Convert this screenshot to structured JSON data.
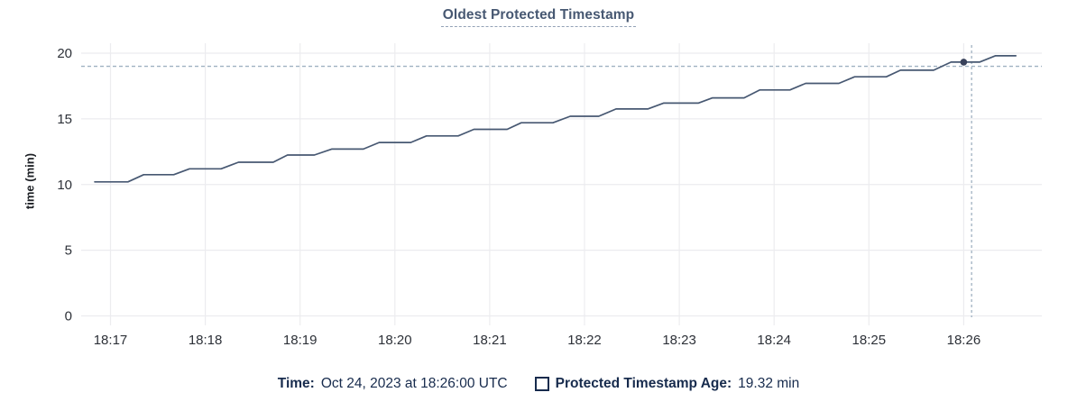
{
  "tooltip": {
    "time_label": "Time:",
    "time_value": "Oct 24, 2023 at 18:26:00 UTC",
    "series_label": "Protected Timestamp Age:",
    "series_value": "19.32 min"
  },
  "colors": {
    "title": "#475872",
    "line": "#475872",
    "dot": "#38415a",
    "crosshair": "#9fb1c1",
    "gridline": "#ececef",
    "tick_text": "#2d3138",
    "legend_text": "#172b4d"
  },
  "chart_data": {
    "type": "line",
    "title": "Oldest Protected Timestamp",
    "xlabel": "",
    "ylabel": "time (min)",
    "ylim": [
      0,
      20
    ],
    "y_ticks": [
      0,
      5,
      10,
      15,
      20
    ],
    "x_ticks": [
      "18:17",
      "18:18",
      "18:19",
      "18:20",
      "18:21",
      "18:22",
      "18:23",
      "18:24",
      "18:25",
      "18:26"
    ],
    "grid": true,
    "legend_position": "bottom",
    "series": [
      {
        "name": "Protected Timestamp Age",
        "unit": "min",
        "points": [
          [
            "18:16:50",
            10.2
          ],
          [
            "18:17:11",
            10.2
          ],
          [
            "18:17:21",
            10.75
          ],
          [
            "18:17:40",
            10.75
          ],
          [
            "18:17:50",
            11.2
          ],
          [
            "18:18:10",
            11.2
          ],
          [
            "18:18:21",
            11.7
          ],
          [
            "18:18:43",
            11.7
          ],
          [
            "18:18:52",
            12.25
          ],
          [
            "18:19:09",
            12.25
          ],
          [
            "18:19:20",
            12.7
          ],
          [
            "18:19:40",
            12.7
          ],
          [
            "18:19:50",
            13.2
          ],
          [
            "18:20:10",
            13.2
          ],
          [
            "18:20:20",
            13.7
          ],
          [
            "18:20:40",
            13.7
          ],
          [
            "18:20:50",
            14.2
          ],
          [
            "18:21:11",
            14.2
          ],
          [
            "18:21:20",
            14.7
          ],
          [
            "18:21:40",
            14.7
          ],
          [
            "18:21:51",
            15.2
          ],
          [
            "18:22:09",
            15.2
          ],
          [
            "18:22:20",
            15.75
          ],
          [
            "18:22:40",
            15.75
          ],
          [
            "18:22:50",
            16.2
          ],
          [
            "18:23:12",
            16.2
          ],
          [
            "18:23:21",
            16.6
          ],
          [
            "18:23:41",
            16.6
          ],
          [
            "18:23:51",
            17.2
          ],
          [
            "18:24:10",
            17.2
          ],
          [
            "18:24:20",
            17.7
          ],
          [
            "18:24:41",
            17.7
          ],
          [
            "18:24:51",
            18.2
          ],
          [
            "18:25:11",
            18.2
          ],
          [
            "18:25:20",
            18.7
          ],
          [
            "18:25:41",
            18.7
          ],
          [
            "18:25:52",
            19.32
          ],
          [
            "18:26:10",
            19.32
          ],
          [
            "18:26:20",
            19.8
          ],
          [
            "18:26:33",
            19.8
          ]
        ]
      }
    ],
    "highlight_point": {
      "time": "18:26:00",
      "value": 19.32
    },
    "crosshair": {
      "time": "18:26:05",
      "value": 19.0
    }
  }
}
